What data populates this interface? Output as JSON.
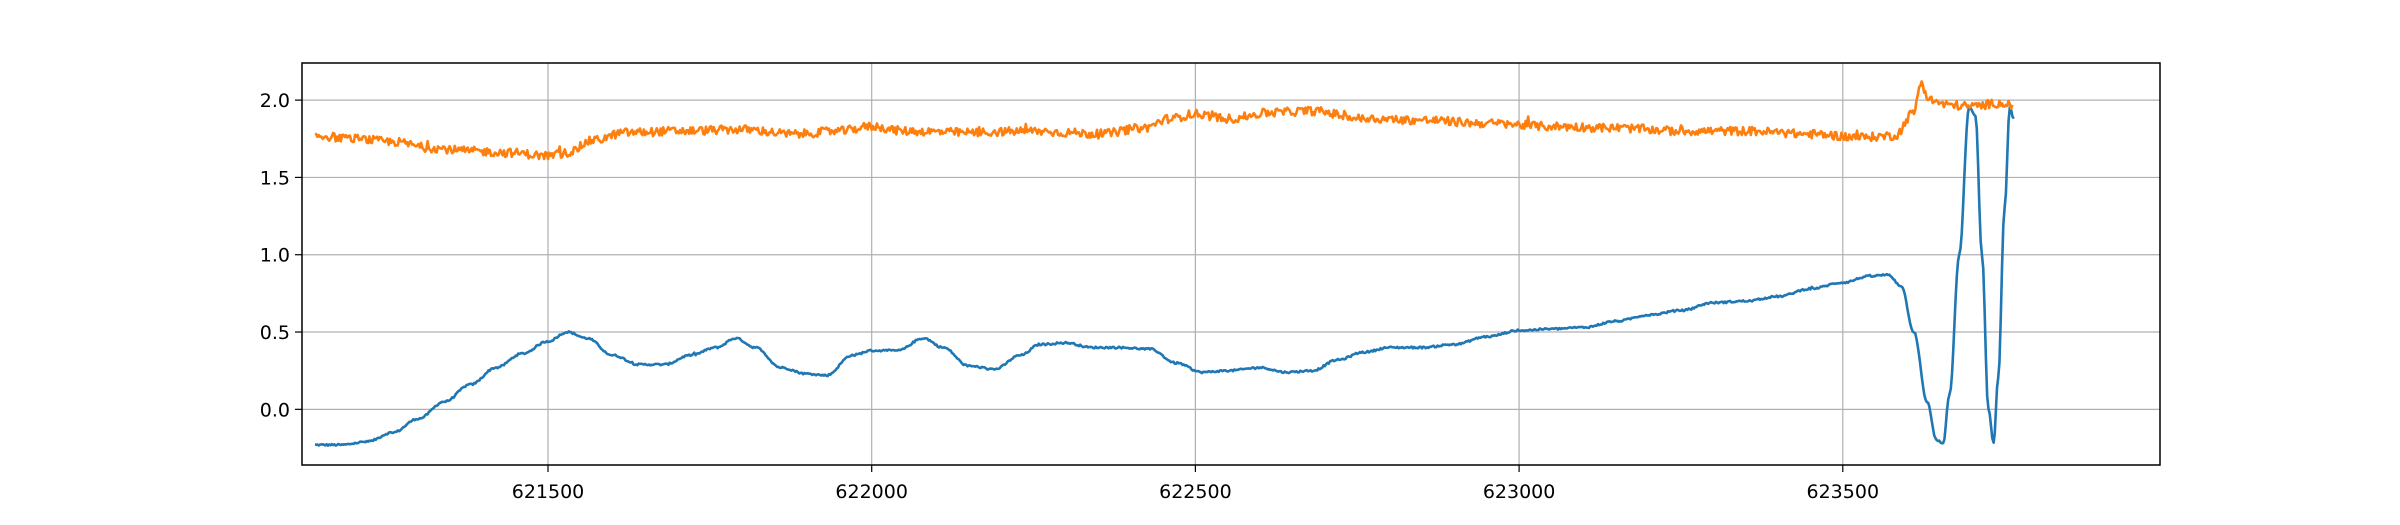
{
  "chart_data": {
    "type": "line",
    "title": "",
    "xlabel": "",
    "ylabel": "",
    "xlim": [
      621120,
      623990
    ],
    "ylim": [
      -0.36,
      2.24
    ],
    "grid": true,
    "legend": "none",
    "x_ticks": [
      {
        "value": 621500,
        "label": "621500"
      },
      {
        "value": 622000,
        "label": "622000"
      },
      {
        "value": 622500,
        "label": "622500"
      },
      {
        "value": 623000,
        "label": "623000"
      },
      {
        "value": 623500,
        "label": "623500"
      }
    ],
    "y_ticks": [
      {
        "value": 0.0,
        "label": "0.0"
      },
      {
        "value": 0.5,
        "label": "0.5"
      },
      {
        "value": 1.0,
        "label": "1.0"
      },
      {
        "value": 1.5,
        "label": "1.5"
      },
      {
        "value": 2.0,
        "label": "2.0"
      }
    ],
    "series": [
      {
        "color": "#1f77b4",
        "noise": 0.006,
        "points": [
          [
            621140,
            -0.23
          ],
          [
            621180,
            -0.23
          ],
          [
            621220,
            -0.21
          ],
          [
            621260,
            -0.15
          ],
          [
            621300,
            -0.06
          ],
          [
            621340,
            0.05
          ],
          [
            621380,
            0.16
          ],
          [
            621420,
            0.27
          ],
          [
            621460,
            0.36
          ],
          [
            621500,
            0.44
          ],
          [
            621530,
            0.5
          ],
          [
            621560,
            0.46
          ],
          [
            621600,
            0.35
          ],
          [
            621640,
            0.29
          ],
          [
            621680,
            0.29
          ],
          [
            621720,
            0.35
          ],
          [
            621760,
            0.4
          ],
          [
            621790,
            0.46
          ],
          [
            621820,
            0.4
          ],
          [
            621860,
            0.27
          ],
          [
            621900,
            0.23
          ],
          [
            621930,
            0.22
          ],
          [
            621970,
            0.35
          ],
          [
            622000,
            0.38
          ],
          [
            622040,
            0.38
          ],
          [
            622080,
            0.46
          ],
          [
            622110,
            0.4
          ],
          [
            622150,
            0.28
          ],
          [
            622190,
            0.26
          ],
          [
            622230,
            0.35
          ],
          [
            622260,
            0.42
          ],
          [
            622300,
            0.43
          ],
          [
            622340,
            0.4
          ],
          [
            622380,
            0.4
          ],
          [
            622430,
            0.39
          ],
          [
            622470,
            0.3
          ],
          [
            622510,
            0.24
          ],
          [
            622550,
            0.25
          ],
          [
            622600,
            0.27
          ],
          [
            622640,
            0.24
          ],
          [
            622680,
            0.25
          ],
          [
            622720,
            0.32
          ],
          [
            622760,
            0.37
          ],
          [
            622800,
            0.4
          ],
          [
            622850,
            0.4
          ],
          [
            622900,
            0.42
          ],
          [
            622950,
            0.47
          ],
          [
            623000,
            0.51
          ],
          [
            623050,
            0.52
          ],
          [
            623100,
            0.53
          ],
          [
            623150,
            0.57
          ],
          [
            623200,
            0.61
          ],
          [
            623250,
            0.64
          ],
          [
            623300,
            0.69
          ],
          [
            623350,
            0.7
          ],
          [
            623400,
            0.73
          ],
          [
            623450,
            0.78
          ],
          [
            623500,
            0.82
          ],
          [
            623540,
            0.86
          ],
          [
            623570,
            0.87
          ],
          [
            623590,
            0.8
          ],
          [
            623610,
            0.5
          ],
          [
            623630,
            0.05
          ],
          [
            623645,
            -0.2
          ],
          [
            623655,
            -0.22
          ],
          [
            623665,
            0.1
          ],
          [
            623680,
            1.0
          ],
          [
            623695,
            1.95
          ],
          [
            623705,
            1.9
          ],
          [
            623715,
            1.0
          ],
          [
            623725,
            0.0
          ],
          [
            623733,
            -0.22
          ],
          [
            623740,
            0.2
          ],
          [
            623750,
            1.3
          ],
          [
            623758,
            1.95
          ],
          [
            623764,
            1.88
          ]
        ]
      },
      {
        "color": "#ff7f0e",
        "noise": 0.028,
        "points": [
          [
            621140,
            1.77
          ],
          [
            621200,
            1.75
          ],
          [
            621260,
            1.73
          ],
          [
            621320,
            1.69
          ],
          [
            621380,
            1.67
          ],
          [
            621440,
            1.66
          ],
          [
            621500,
            1.64
          ],
          [
            621530,
            1.66
          ],
          [
            621570,
            1.74
          ],
          [
            621620,
            1.79
          ],
          [
            621700,
            1.8
          ],
          [
            621800,
            1.81
          ],
          [
            621880,
            1.78
          ],
          [
            621950,
            1.8
          ],
          [
            622000,
            1.83
          ],
          [
            622050,
            1.8
          ],
          [
            622150,
            1.79
          ],
          [
            622250,
            1.8
          ],
          [
            622300,
            1.79
          ],
          [
            622350,
            1.78
          ],
          [
            622420,
            1.82
          ],
          [
            622460,
            1.88
          ],
          [
            622500,
            1.91
          ],
          [
            622550,
            1.88
          ],
          [
            622620,
            1.92
          ],
          [
            622680,
            1.93
          ],
          [
            622760,
            1.88
          ],
          [
            622850,
            1.87
          ],
          [
            622950,
            1.85
          ],
          [
            623050,
            1.83
          ],
          [
            623150,
            1.82
          ],
          [
            623250,
            1.8
          ],
          [
            623350,
            1.8
          ],
          [
            623450,
            1.78
          ],
          [
            623530,
            1.76
          ],
          [
            623580,
            1.77
          ],
          [
            623610,
            1.92
          ],
          [
            623620,
            2.11
          ],
          [
            623635,
            2.0
          ],
          [
            623660,
            1.97
          ],
          [
            623700,
            1.96
          ],
          [
            623740,
            1.98
          ],
          [
            623762,
            1.97
          ]
        ]
      }
    ]
  }
}
